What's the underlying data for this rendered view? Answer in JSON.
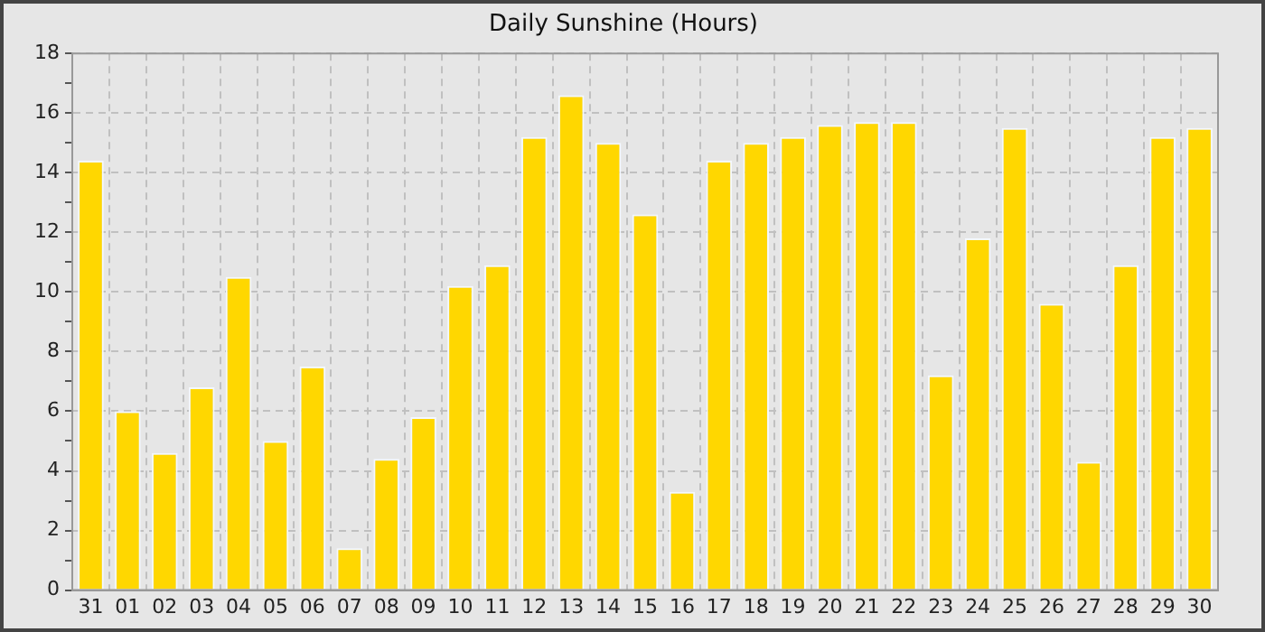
{
  "chart_data": {
    "type": "bar",
    "title": "Daily Sunshine (Hours)",
    "categories": [
      "31",
      "01",
      "02",
      "03",
      "04",
      "05",
      "06",
      "07",
      "08",
      "09",
      "10",
      "11",
      "12",
      "13",
      "14",
      "15",
      "16",
      "17",
      "18",
      "19",
      "20",
      "21",
      "22",
      "23",
      "24",
      "25",
      "26",
      "27",
      "28",
      "29",
      "30"
    ],
    "values": [
      14.4,
      6.0,
      4.6,
      6.8,
      10.5,
      5.0,
      7.5,
      1.4,
      4.4,
      5.8,
      10.2,
      10.9,
      15.2,
      16.6,
      15.0,
      12.6,
      3.3,
      14.4,
      15.0,
      15.2,
      15.6,
      15.7,
      15.7,
      7.2,
      11.8,
      15.5,
      9.6,
      4.3,
      10.9,
      15.2,
      15.5
    ],
    "color": "#ffd700",
    "ylim": [
      0,
      18
    ],
    "yticks": [
      0,
      {
        "value": 1,
        "label": null
      },
      2,
      {
        "value": 3,
        "label": null
      },
      4,
      {
        "value": 5,
        "label": null
      },
      6,
      {
        "value": 7,
        "label": null
      },
      8,
      {
        "value": 9,
        "label": null
      },
      10,
      {
        "value": 11,
        "label": null
      },
      12,
      {
        "value": 13,
        "label": null
      },
      14,
      {
        "value": 15,
        "label": null
      },
      16,
      {
        "value": 17,
        "label": null
      },
      18
    ],
    "grid": true
  }
}
